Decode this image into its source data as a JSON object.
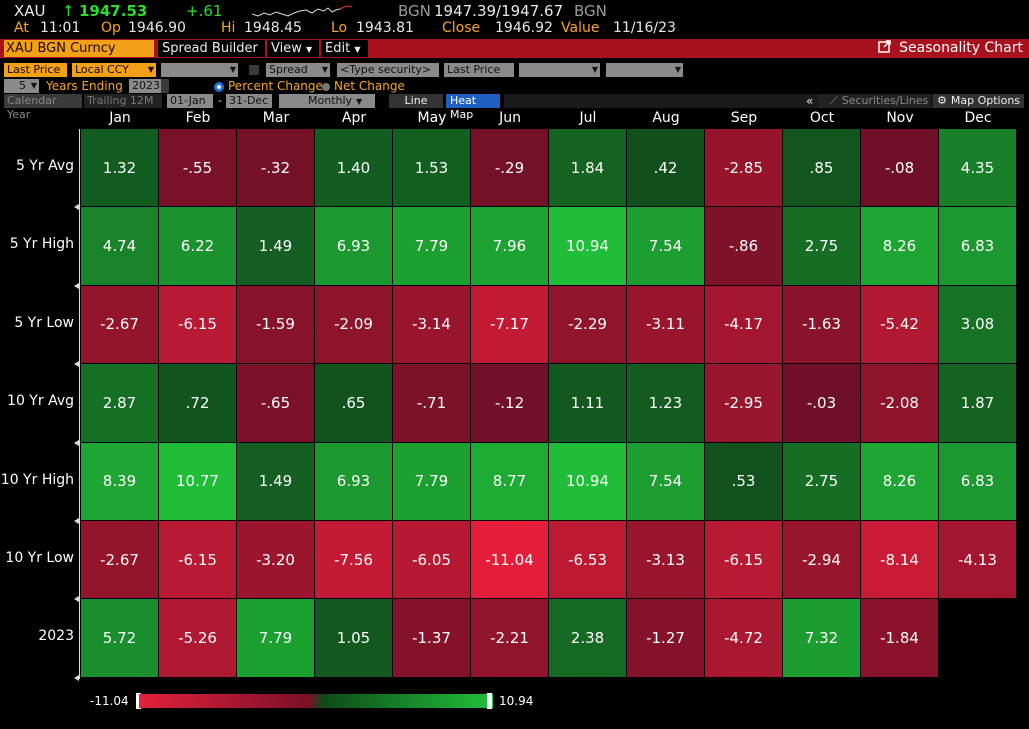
{
  "header": {
    "ticker": "XAU",
    "arrow": "↑",
    "last": "1947.53",
    "change": "+.61",
    "source": "BGN",
    "bid_ask": "1947.39/1947.67",
    "source2": "BGN",
    "at_label": "At",
    "at_time": "11:01",
    "op_label": "Op",
    "op": "1946.90",
    "hi_label": "Hi",
    "hi": "1948.45",
    "lo_label": "Lo",
    "lo": "1943.81",
    "close_label": "Close",
    "close": "1946.92",
    "value_label": "Value",
    "value_date": "11/16/23"
  },
  "toolbar": {
    "security": "XAU BGN Curncy",
    "spread_builder": "Spread Builder",
    "view": "View",
    "edit": "Edit",
    "seasonality": "Seasonality Chart"
  },
  "controls": {
    "field1": "Last Price",
    "currency": "Local CCY",
    "spread": "Spread",
    "type_security": "<Type security>",
    "field2": "Last Price",
    "years": "5",
    "years_label": "Years Ending",
    "year_end": "2023",
    "percent_change": "Percent Change",
    "net_change": "Net Change",
    "calendar_year": "Calendar Year",
    "trailing": "Trailing 12M",
    "from": "01-Jan",
    "dash": "-",
    "to": "31-Dec",
    "period": "Monthly",
    "line": "Line",
    "heat_map": "Heat Map",
    "collapse": "«",
    "securities_lines": "Securities/Lines",
    "map_options": "Map Options"
  },
  "chart_data": {
    "type": "heatmap",
    "columns": [
      "Jan",
      "Feb",
      "Mar",
      "Apr",
      "May",
      "Jun",
      "Jul",
      "Aug",
      "Sep",
      "Oct",
      "Nov",
      "Dec"
    ],
    "rows": [
      {
        "label": "5 Yr Avg",
        "values": [
          "1.32",
          "-.55",
          "-.32",
          "1.40",
          "1.53",
          "-.29",
          "1.84",
          ".42",
          "-2.85",
          ".85",
          "-.08",
          "4.35"
        ]
      },
      {
        "label": "5 Yr High",
        "values": [
          "4.74",
          "6.22",
          "1.49",
          "6.93",
          "7.79",
          "7.96",
          "10.94",
          "7.54",
          "-.86",
          "2.75",
          "8.26",
          "6.83"
        ]
      },
      {
        "label": "5 Yr Low",
        "values": [
          "-2.67",
          "-6.15",
          "-1.59",
          "-2.09",
          "-3.14",
          "-7.17",
          "-2.29",
          "-3.11",
          "-4.17",
          "-1.63",
          "-5.42",
          "3.08"
        ]
      },
      {
        "label": "10 Yr Avg",
        "values": [
          "2.87",
          ".72",
          "-.65",
          ".65",
          "-.71",
          "-.12",
          "1.11",
          "1.23",
          "-2.95",
          "-.03",
          "-2.08",
          "1.87"
        ]
      },
      {
        "label": "10 Yr High",
        "values": [
          "8.39",
          "10.77",
          "1.49",
          "6.93",
          "7.79",
          "8.77",
          "10.94",
          "7.54",
          ".53",
          "2.75",
          "8.26",
          "6.83"
        ]
      },
      {
        "label": "10 Yr Low",
        "values": [
          "-2.67",
          "-6.15",
          "-3.20",
          "-7.56",
          "-6.05",
          "-11.04",
          "-6.53",
          "-3.13",
          "-6.15",
          "-2.94",
          "-8.14",
          "-4.13"
        ]
      },
      {
        "label": "2023",
        "values": [
          "5.72",
          "-5.26",
          "7.79",
          "1.05",
          "-1.37",
          "-2.21",
          "2.38",
          "-1.27",
          "-4.72",
          "7.32",
          "-1.84",
          ""
        ]
      }
    ],
    "legend_min": "-11.04",
    "legend_max": "10.94",
    "min": -11.04,
    "max": 10.94
  }
}
